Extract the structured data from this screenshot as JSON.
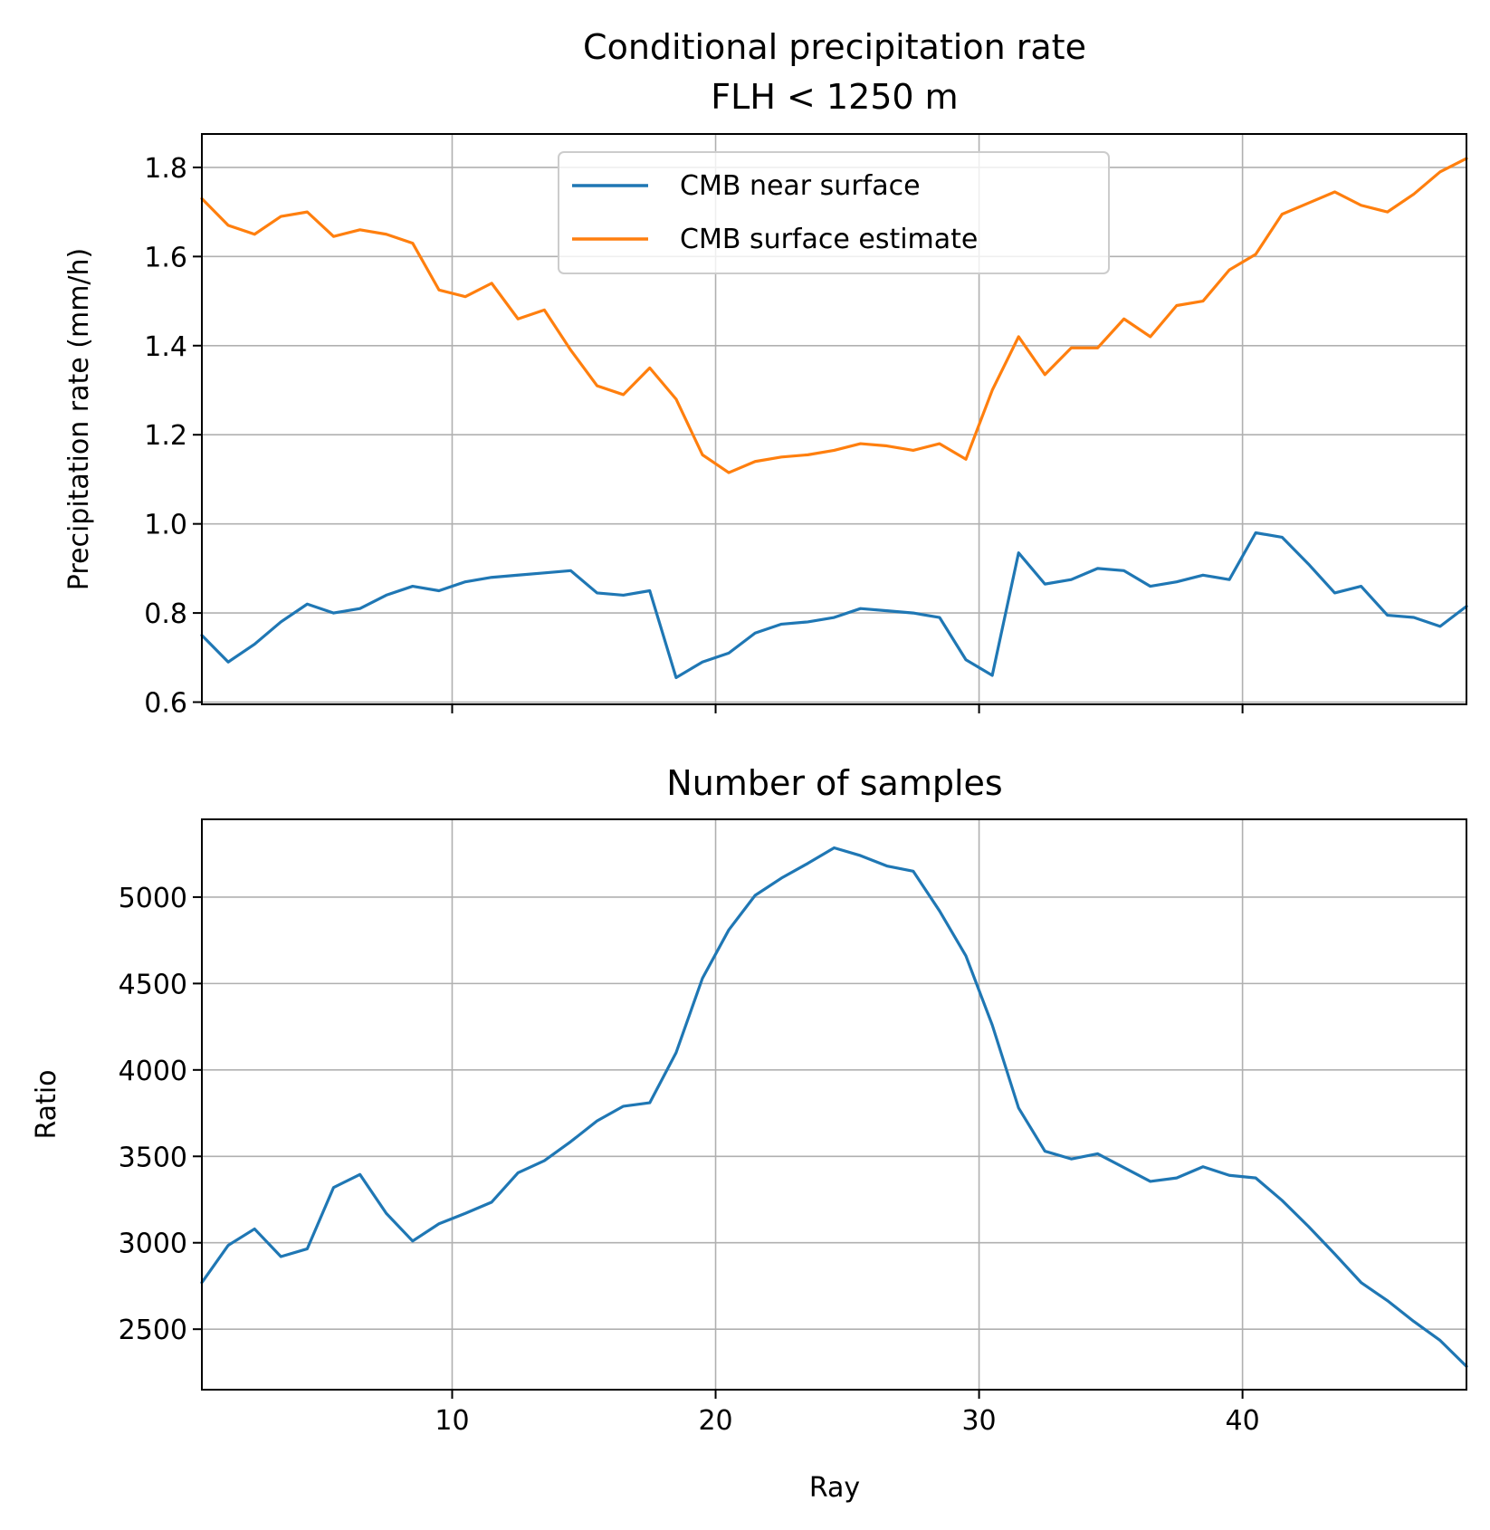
{
  "chart_data": [
    {
      "type": "line",
      "title": "Conditional precipitation rate\nFLH < 1250 m",
      "xlabel": "",
      "ylabel": "Precipitation rate (mm/h)",
      "xlim": [
        0.5,
        48.5
      ],
      "ylim": [
        0.595,
        1.875
      ],
      "xticks": [
        10,
        20,
        30,
        40
      ],
      "xtick_labels_visible": false,
      "yticks": [
        0.6,
        0.8,
        1.0,
        1.2,
        1.4,
        1.6,
        1.8
      ],
      "ytick_labels": [
        "0.6",
        "0.8",
        "1.0",
        "1.2",
        "1.4",
        "1.6",
        "1.8"
      ],
      "grid": true,
      "legend": "upper-center",
      "x": [
        0.5,
        1.5,
        2.5,
        3.5,
        4.5,
        5.5,
        6.5,
        7.5,
        8.5,
        9.5,
        10.5,
        11.5,
        12.5,
        13.5,
        14.5,
        15.5,
        16.5,
        17.5,
        18.5,
        19.5,
        20.5,
        21.5,
        22.5,
        23.5,
        24.5,
        25.5,
        26.5,
        27.5,
        28.5,
        29.5,
        30.5,
        31.5,
        32.5,
        33.5,
        34.5,
        35.5,
        36.5,
        37.5,
        38.5,
        39.5,
        40.5,
        41.5,
        42.5,
        43.5,
        44.5,
        45.5,
        46.5,
        47.5,
        48.5
      ],
      "series": [
        {
          "name": "CMB near surface",
          "color": "#1f77b4",
          "values": [
            0.75,
            0.69,
            0.73,
            0.78,
            0.82,
            0.8,
            0.81,
            0.84,
            0.86,
            0.85,
            0.87,
            0.88,
            0.885,
            0.89,
            0.895,
            0.845,
            0.84,
            0.85,
            0.655,
            0.69,
            0.71,
            0.755,
            0.775,
            0.78,
            0.79,
            0.81,
            0.805,
            0.8,
            0.79,
            0.695,
            0.66,
            0.935,
            0.865,
            0.875,
            0.9,
            0.895,
            0.86,
            0.87,
            0.885,
            0.875,
            0.98,
            0.97,
            0.91,
            0.845,
            0.86,
            0.795,
            0.79,
            0.77,
            0.815
          ]
        },
        {
          "name": "CMB surface estimate",
          "color": "#ff7f0e",
          "values": [
            1.73,
            1.67,
            1.65,
            1.69,
            1.7,
            1.645,
            1.66,
            1.65,
            1.63,
            1.525,
            1.51,
            1.54,
            1.46,
            1.48,
            1.39,
            1.31,
            1.29,
            1.35,
            1.28,
            1.155,
            1.115,
            1.14,
            1.15,
            1.155,
            1.165,
            1.18,
            1.175,
            1.165,
            1.18,
            1.145,
            1.3,
            1.42,
            1.335,
            1.395,
            1.395,
            1.46,
            1.42,
            1.49,
            1.5,
            1.57,
            1.605,
            1.695,
            1.72,
            1.745,
            1.715,
            1.7,
            1.74,
            1.79,
            1.82
          ]
        }
      ]
    },
    {
      "type": "line",
      "title": "Number of samples",
      "xlabel": "Ray",
      "ylabel": "Ratio",
      "xlim": [
        0.5,
        48.5
      ],
      "ylim": [
        2150,
        5450
      ],
      "xticks": [
        10,
        20,
        30,
        40
      ],
      "xtick_labels": [
        "10",
        "20",
        "30",
        "40"
      ],
      "yticks": [
        2500,
        3000,
        3500,
        4000,
        4500,
        5000
      ],
      "ytick_labels": [
        "2500",
        "3000",
        "3500",
        "4000",
        "4500",
        "5000"
      ],
      "grid": true,
      "x": [
        0.5,
        1.5,
        2.5,
        3.5,
        4.5,
        5.5,
        6.5,
        7.5,
        8.5,
        9.5,
        10.5,
        11.5,
        12.5,
        13.5,
        14.5,
        15.5,
        16.5,
        17.5,
        18.5,
        19.5,
        20.5,
        21.5,
        22.5,
        23.5,
        24.5,
        25.5,
        26.5,
        27.5,
        28.5,
        29.5,
        30.5,
        31.5,
        32.5,
        33.5,
        34.5,
        35.5,
        36.5,
        37.5,
        38.5,
        39.5,
        40.5,
        41.5,
        42.5,
        43.5,
        44.5,
        45.5,
        46.5,
        47.5,
        48.5
      ],
      "series": [
        {
          "color": "#1f77b4",
          "values": [
            2770,
            2985,
            3080,
            2920,
            2965,
            3320,
            3395,
            3170,
            3010,
            3110,
            3170,
            3235,
            3405,
            3475,
            3585,
            3705,
            3790,
            3810,
            4100,
            4530,
            4810,
            5010,
            5110,
            5195,
            5285,
            5240,
            5180,
            5150,
            4920,
            4660,
            4260,
            3780,
            3530,
            3485,
            3515,
            3435,
            3355,
            3375,
            3440,
            3390,
            3375,
            3245,
            3095,
            2935,
            2770,
            2665,
            2545,
            2435,
            2285
          ]
        }
      ]
    }
  ]
}
